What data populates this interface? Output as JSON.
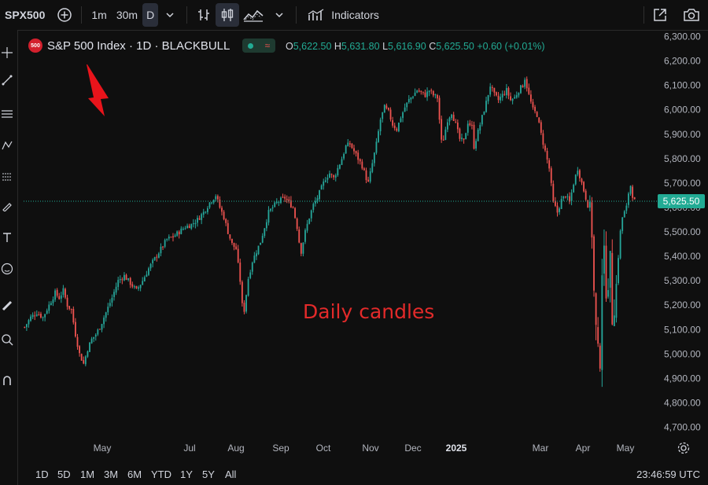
{
  "toolbar": {
    "symbol": "SPX500",
    "intervals": [
      "1m",
      "30m",
      "D"
    ],
    "active_interval": "D",
    "indicators_label": "Indicators"
  },
  "legend": {
    "badge": "500",
    "title": "S&P 500 Index · 1D · BLACKBULL",
    "O": "5,622.50",
    "H": "5,631.80",
    "L": "5,616.90",
    "C": "5,625.50",
    "change": "+0.60 (+0.01%)"
  },
  "annotation": "Daily candles",
  "last_price_label": "5,625.50",
  "bottom": {
    "ranges": [
      "1D",
      "5D",
      "1M",
      "3M",
      "6M",
      "YTD",
      "1Y",
      "5Y",
      "All"
    ],
    "clock": "23:46:59 UTC"
  },
  "colors": {
    "up": "#26a69a",
    "down": "#ef5350",
    "background": "#0f0f0f",
    "annotation": "#e32a2a",
    "arrow": "#e8141b"
  },
  "chart_data": {
    "type": "candlestick",
    "title": "S&P 500 Index · 1D · BLACKBULL",
    "y_ticks": [
      "4,700.00",
      "4,800.00",
      "4,900.00",
      "5,000.00",
      "5,100.00",
      "5,200.00",
      "5,300.00",
      "5,400.00",
      "5,500.00",
      "5,600.00",
      "5,700.00",
      "5,800.00",
      "5,900.00",
      "6,000.00",
      "6,100.00",
      "6,200.00",
      "6,300.00"
    ],
    "ylim": [
      4650,
      6320
    ],
    "x_labels": [
      "May",
      "Jul",
      "Aug",
      "Sep",
      "Oct",
      "Nov",
      "Dec",
      "2025",
      "Mar",
      "Apr",
      "May"
    ],
    "last_price": 5625.5,
    "grid": false,
    "close_path": [
      [
        0,
        5110
      ],
      [
        3,
        5150
      ],
      [
        6,
        5170
      ],
      [
        9,
        5150
      ],
      [
        12,
        5200
      ],
      [
        15,
        5250
      ],
      [
        17,
        5230
      ],
      [
        19,
        5260
      ],
      [
        21,
        5200
      ],
      [
        23,
        5180
      ],
      [
        25,
        5080
      ],
      [
        27,
        5000
      ],
      [
        29,
        4960
      ],
      [
        31,
        5020
      ],
      [
        33,
        5060
      ],
      [
        35,
        5080
      ],
      [
        37,
        5110
      ],
      [
        40,
        5170
      ],
      [
        43,
        5230
      ],
      [
        46,
        5300
      ],
      [
        49,
        5320
      ],
      [
        52,
        5290
      ],
      [
        55,
        5260
      ],
      [
        58,
        5300
      ],
      [
        61,
        5350
      ],
      [
        64,
        5390
      ],
      [
        67,
        5430
      ],
      [
        70,
        5470
      ],
      [
        73,
        5480
      ],
      [
        76,
        5500
      ],
      [
        79,
        5520
      ],
      [
        82,
        5530
      ],
      [
        85,
        5550
      ],
      [
        88,
        5580
      ],
      [
        91,
        5620
      ],
      [
        94,
        5650
      ],
      [
        96,
        5600
      ],
      [
        98,
        5560
      ],
      [
        100,
        5500
      ],
      [
        102,
        5450
      ],
      [
        104,
        5430
      ],
      [
        106,
        5300
      ],
      [
        107,
        5200
      ],
      [
        108,
        5180
      ],
      [
        110,
        5310
      ],
      [
        112,
        5380
      ],
      [
        114,
        5420
      ],
      [
        116,
        5460
      ],
      [
        118,
        5520
      ],
      [
        120,
        5580
      ],
      [
        122,
        5600
      ],
      [
        124,
        5620
      ],
      [
        126,
        5630
      ],
      [
        128,
        5640
      ],
      [
        130,
        5620
      ],
      [
        132,
        5600
      ],
      [
        134,
        5520
      ],
      [
        135,
        5460
      ],
      [
        136,
        5420
      ],
      [
        138,
        5500
      ],
      [
        140,
        5560
      ],
      [
        142,
        5610
      ],
      [
        144,
        5640
      ],
      [
        146,
        5680
      ],
      [
        148,
        5720
      ],
      [
        150,
        5740
      ],
      [
        152,
        5720
      ],
      [
        154,
        5760
      ],
      [
        156,
        5800
      ],
      [
        158,
        5850
      ],
      [
        160,
        5860
      ],
      [
        162,
        5830
      ],
      [
        164,
        5800
      ],
      [
        166,
        5770
      ],
      [
        168,
        5720
      ],
      [
        169,
        5700
      ],
      [
        171,
        5780
      ],
      [
        173,
        5860
      ],
      [
        175,
        5960
      ],
      [
        177,
        6010
      ],
      [
        179,
        5990
      ],
      [
        181,
        5940
      ],
      [
        183,
        5920
      ],
      [
        185,
        5970
      ],
      [
        187,
        6010
      ],
      [
        189,
        6040
      ],
      [
        191,
        6060
      ],
      [
        193,
        6080
      ],
      [
        195,
        6070
      ],
      [
        197,
        6060
      ],
      [
        199,
        6080
      ],
      [
        201,
        6060
      ],
      [
        203,
        6050
      ],
      [
        205,
        5870
      ],
      [
        206,
        5880
      ],
      [
        208,
        5960
      ],
      [
        210,
        5990
      ],
      [
        212,
        5940
      ],
      [
        214,
        5880
      ],
      [
        216,
        5870
      ],
      [
        218,
        5950
      ],
      [
        220,
        5930
      ],
      [
        221,
        5850
      ],
      [
        223,
        5910
      ],
      [
        225,
        5970
      ],
      [
        227,
        6030
      ],
      [
        229,
        6100
      ],
      [
        231,
        6060
      ],
      [
        233,
        6040
      ],
      [
        235,
        6060
      ],
      [
        237,
        6080
      ],
      [
        239,
        6040
      ],
      [
        241,
        6050
      ],
      [
        243,
        6080
      ],
      [
        245,
        6100
      ],
      [
        246,
        6130
      ],
      [
        248,
        6060
      ],
      [
        250,
        6000
      ],
      [
        252,
        5980
      ],
      [
        254,
        5900
      ],
      [
        256,
        5830
      ],
      [
        258,
        5760
      ],
      [
        260,
        5620
      ],
      [
        262,
        5580
      ],
      [
        264,
        5630
      ],
      [
        266,
        5650
      ],
      [
        268,
        5620
      ],
      [
        270,
        5700
      ],
      [
        272,
        5760
      ],
      [
        274,
        5700
      ],
      [
        276,
        5640
      ],
      [
        278,
        5580
      ],
      [
        279,
        5500
      ],
      [
        280,
        5250
      ],
      [
        281,
        5100
      ],
      [
        282,
        5000
      ],
      [
        283,
        4980
      ],
      [
        284,
        5350
      ],
      [
        285,
        5400
      ],
      [
        286,
        5270
      ],
      [
        287,
        5300
      ],
      [
        288,
        5380
      ],
      [
        289,
        5150
      ],
      [
        290,
        5200
      ],
      [
        291,
        5280
      ],
      [
        292,
        5400
      ],
      [
        293,
        5500
      ],
      [
        294,
        5560
      ],
      [
        295,
        5580
      ],
      [
        296,
        5600
      ],
      [
        297,
        5660
      ],
      [
        298,
        5690
      ],
      [
        299,
        5650
      ],
      [
        300,
        5625.5
      ]
    ]
  }
}
